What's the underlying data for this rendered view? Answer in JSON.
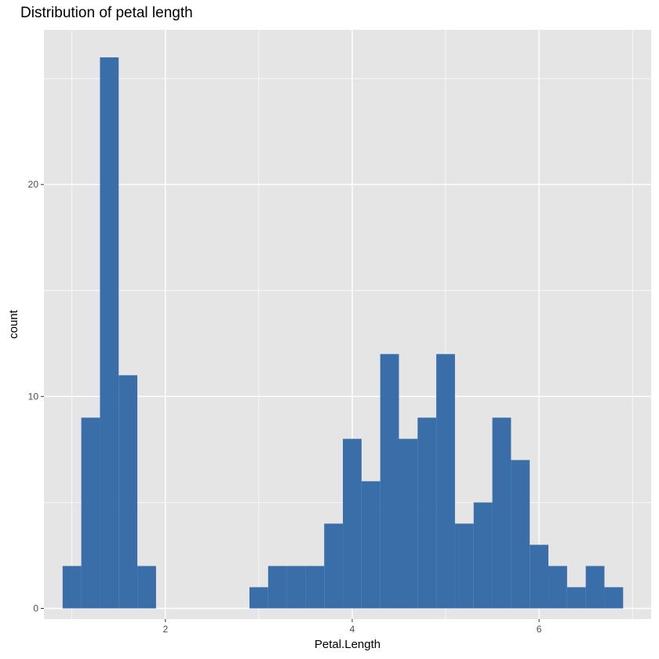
{
  "chart_data": {
    "type": "bar",
    "subtype": "histogram",
    "title": "Distribution of petal length",
    "xlabel": "Petal.Length",
    "ylabel": "count",
    "xlim": [
      0.7,
      7.2
    ],
    "ylim": [
      -0.5,
      27.3
    ],
    "x_ticks": [
      2,
      4,
      6
    ],
    "y_ticks": [
      0,
      10,
      20
    ],
    "bin_width": 0.2,
    "bin_starts": [
      0.9,
      1.1,
      1.3,
      1.5,
      1.7,
      1.9,
      2.1,
      2.3,
      2.5,
      2.7,
      2.9,
      3.1,
      3.3,
      3.5,
      3.7,
      3.9,
      4.1,
      4.3,
      4.5,
      4.7,
      4.9,
      5.1,
      5.3,
      5.5,
      5.7,
      5.9,
      6.1,
      6.3,
      6.5,
      6.7
    ],
    "counts": [
      2,
      9,
      26,
      11,
      2,
      0,
      0,
      0,
      0,
      0,
      1,
      2,
      2,
      2,
      4,
      8,
      6,
      12,
      8,
      9,
      12,
      4,
      5,
      9,
      7,
      3,
      2,
      1,
      2,
      1
    ],
    "bar_color": "#3a6ea8",
    "panel_background": "#e5e5e5",
    "grid": true,
    "grid_color": "#ffffff"
  }
}
